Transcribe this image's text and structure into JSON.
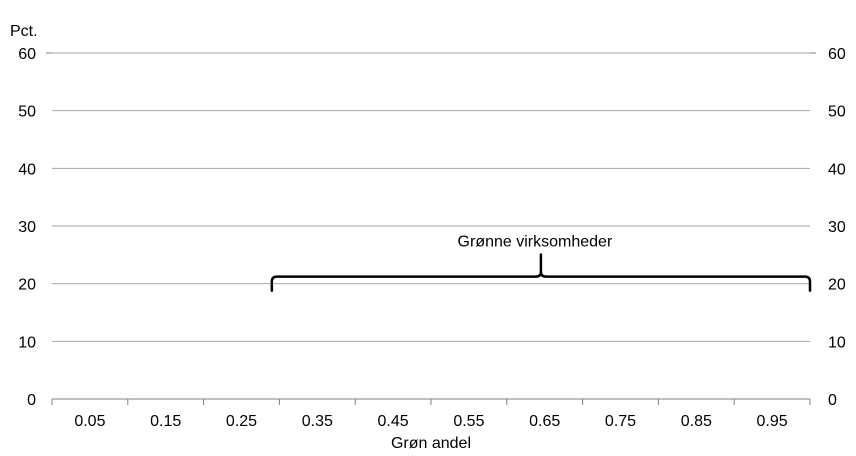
{
  "chart_data": {
    "type": "bar",
    "categories": [
      "0.05",
      "0.15",
      "0.25",
      "0.35",
      "0.45",
      "0.55",
      "0.65",
      "0.75",
      "0.85",
      "0.95"
    ],
    "y_axis_unit": "Pct.",
    "xlabel": "Grøn andel",
    "ylim": [
      0,
      60
    ],
    "y_ticks": [
      0,
      10,
      20,
      30,
      40,
      50,
      60
    ],
    "grid": true,
    "secondary_y_axis": true,
    "annotation": {
      "text": "Grønne virksomheder",
      "type": "brace",
      "x_start": 0.29,
      "x_end": 1.0,
      "y": 20
    }
  }
}
